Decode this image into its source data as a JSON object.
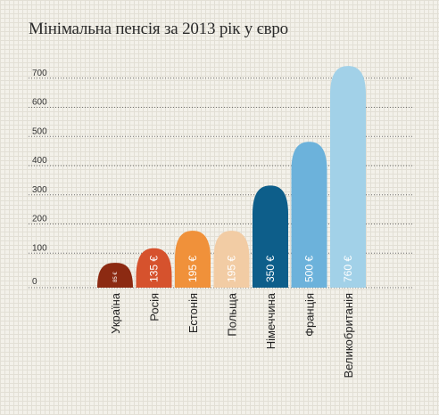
{
  "chart_data": {
    "type": "bar",
    "title": "Мінімальна пенсія за 2013 рік у євро",
    "categories": [
      "Україна",
      "Росія",
      "Естонія",
      "Польща",
      "Німеччина",
      "Франція",
      "Великобританія"
    ],
    "values": [
      85,
      135,
      195,
      195,
      350,
      500,
      760
    ],
    "value_labels": [
      "85 €",
      "135 €",
      "195 €",
      "195 €",
      "350 €",
      "500 €",
      "760 €"
    ],
    "bar_colors": [
      "#8c2a12",
      "#d6522d",
      "#f0913a",
      "#f2cca4",
      "#0d5e8a",
      "#6cb2db",
      "#a2d1e8"
    ],
    "y_ticks": [
      0,
      100,
      200,
      300,
      400,
      500,
      600,
      700
    ],
    "ylim": [
      0,
      760
    ],
    "grid": true,
    "xlabel": "",
    "ylabel": ""
  }
}
